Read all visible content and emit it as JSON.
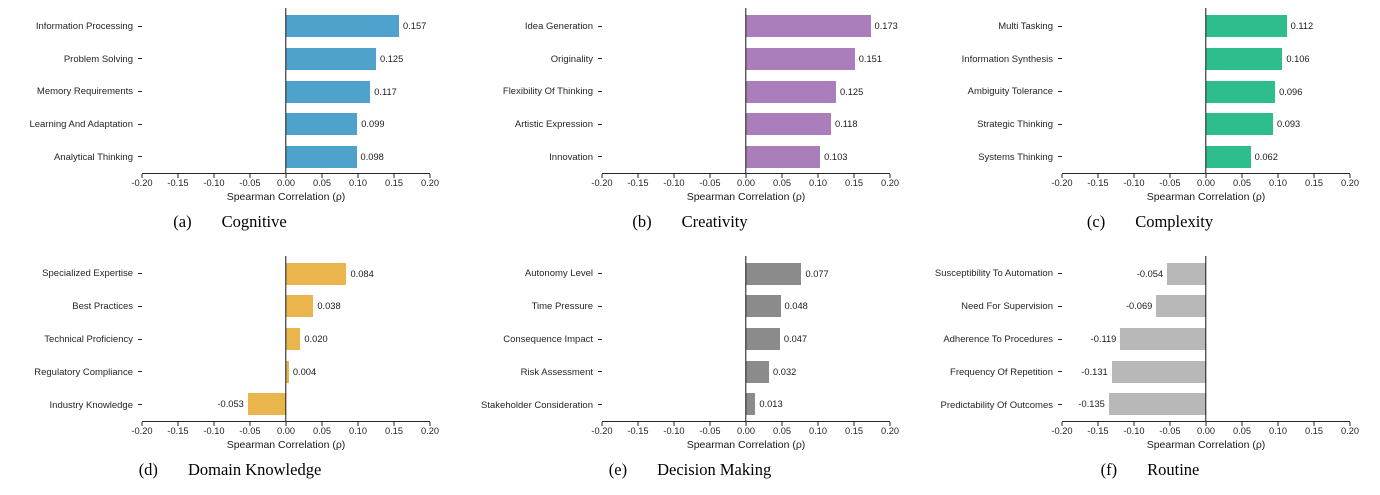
{
  "figure": {
    "x_ticks": [
      "-0.20",
      "-0.15",
      "-0.10",
      "-0.05",
      "0.00",
      "0.05",
      "0.10",
      "0.15",
      "0.20"
    ],
    "xlim": [
      -0.2,
      0.2
    ],
    "xlabel": "Spearman Correlation (ρ)"
  },
  "chart_data": [
    {
      "type": "bar",
      "orientation": "horizontal",
      "caption_index": "(a)",
      "title": "Cognitive",
      "color": "#4FA2CB",
      "xlabel": "Spearman Correlation (ρ)",
      "xlim": [
        -0.2,
        0.2
      ],
      "x_ticks": [
        "-0.20",
        "-0.15",
        "-0.10",
        "-0.05",
        "0.00",
        "0.05",
        "0.10",
        "0.15",
        "0.20"
      ],
      "categories": [
        "Information Processing",
        "Problem Solving",
        "Memory Requirements",
        "Learning And Adaptation",
        "Analytical Thinking"
      ],
      "values": [
        0.157,
        0.125,
        0.117,
        0.099,
        0.098
      ],
      "value_labels": [
        "0.157",
        "0.125",
        "0.117",
        "0.099",
        "0.098"
      ]
    },
    {
      "type": "bar",
      "orientation": "horizontal",
      "caption_index": "(b)",
      "title": "Creativity",
      "color": "#A97EBB",
      "xlabel": "Spearman Correlation (ρ)",
      "xlim": [
        -0.2,
        0.2
      ],
      "x_ticks": [
        "-0.20",
        "-0.15",
        "-0.10",
        "-0.05",
        "0.00",
        "0.05",
        "0.10",
        "0.15",
        "0.20"
      ],
      "categories": [
        "Idea Generation",
        "Originality",
        "Flexibility Of Thinking",
        "Artistic Expression",
        "Innovation"
      ],
      "values": [
        0.173,
        0.151,
        0.125,
        0.118,
        0.103
      ],
      "value_labels": [
        "0.173",
        "0.151",
        "0.125",
        "0.118",
        "0.103"
      ]
    },
    {
      "type": "bar",
      "orientation": "horizontal",
      "caption_index": "(c)",
      "title": "Complexity",
      "color": "#2EBD8D",
      "xlabel": "Spearman Correlation (ρ)",
      "xlim": [
        -0.2,
        0.2
      ],
      "x_ticks": [
        "-0.20",
        "-0.15",
        "-0.10",
        "-0.05",
        "0.00",
        "0.05",
        "0.10",
        "0.15",
        "0.20"
      ],
      "categories": [
        "Multi Tasking",
        "Information Synthesis",
        "Ambiguity Tolerance",
        "Strategic Thinking",
        "Systems Thinking"
      ],
      "values": [
        0.112,
        0.106,
        0.096,
        0.093,
        0.062
      ],
      "value_labels": [
        "0.112",
        "0.106",
        "0.096",
        "0.093",
        "0.062"
      ]
    },
    {
      "type": "bar",
      "orientation": "horizontal",
      "caption_index": "(d)",
      "title": "Domain Knowledge",
      "color": "#EBB54E",
      "xlabel": "Spearman Correlation (ρ)",
      "xlim": [
        -0.2,
        0.2
      ],
      "x_ticks": [
        "-0.20",
        "-0.15",
        "-0.10",
        "-0.05",
        "0.00",
        "0.05",
        "0.10",
        "0.15",
        "0.20"
      ],
      "categories": [
        "Specialized Expertise",
        "Best Practices",
        "Technical Proficiency",
        "Regulatory Compliance",
        "Industry Knowledge"
      ],
      "values": [
        0.084,
        0.038,
        0.02,
        0.004,
        -0.053
      ],
      "value_labels": [
        "0.084",
        "0.038",
        "0.020",
        "0.004",
        "-0.053"
      ]
    },
    {
      "type": "bar",
      "orientation": "horizontal",
      "caption_index": "(e)",
      "title": "Decision Making",
      "color": "#8B8B8B",
      "xlabel": "Spearman Correlation (ρ)",
      "xlim": [
        -0.2,
        0.2
      ],
      "x_ticks": [
        "-0.20",
        "-0.15",
        "-0.10",
        "-0.05",
        "0.00",
        "0.05",
        "0.10",
        "0.15",
        "0.20"
      ],
      "categories": [
        "Autonomy Level",
        "Time Pressure",
        "Consequence Impact",
        "Risk Assessment",
        "Stakeholder Consideration"
      ],
      "values": [
        0.077,
        0.048,
        0.047,
        0.032,
        0.013
      ],
      "value_labels": [
        "0.077",
        "0.048",
        "0.047",
        "0.032",
        "0.013"
      ]
    },
    {
      "type": "bar",
      "orientation": "horizontal",
      "caption_index": "(f)",
      "title": "Routine",
      "color": "#B8B8B8",
      "xlabel": "Spearman Correlation (ρ)",
      "xlim": [
        -0.2,
        0.2
      ],
      "x_ticks": [
        "-0.20",
        "-0.15",
        "-0.10",
        "-0.05",
        "0.00",
        "0.05",
        "0.10",
        "0.15",
        "0.20"
      ],
      "categories": [
        "Susceptibility To Automation",
        "Need For Supervision",
        "Adherence To Procedures",
        "Frequency Of Repetition",
        "Predictability Of Outcomes"
      ],
      "values": [
        -0.054,
        -0.069,
        -0.119,
        -0.131,
        -0.135
      ],
      "value_labels": [
        "-0.054",
        "-0.069",
        "-0.119",
        "-0.131",
        "-0.135"
      ]
    }
  ]
}
